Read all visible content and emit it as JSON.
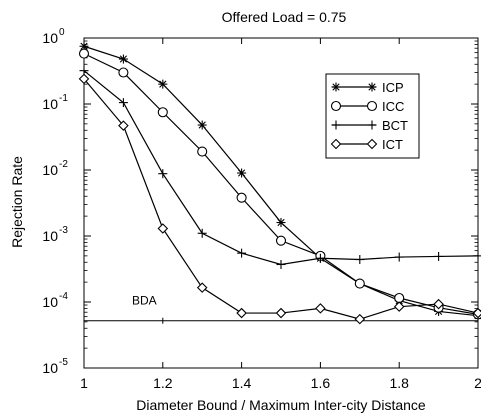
{
  "chart_data": {
    "type": "line",
    "title": "Offered Load = 0.75",
    "xlabel": "Diameter Bound / Maximum Inter-city Distance",
    "ylabel": "Rejection Rate",
    "xscale": "linear",
    "yscale": "log",
    "xlim": [
      1,
      2
    ],
    "ylim": [
      1e-05,
      1
    ],
    "xticks": [
      1,
      1.2,
      1.4,
      1.6,
      1.8,
      2
    ],
    "xtick_labels": [
      "1",
      "1.2",
      "1.4",
      "1.6",
      "1.8",
      "2"
    ],
    "yticks": [
      1e-05,
      0.0001,
      0.001,
      0.01,
      0.1,
      1
    ],
    "ytick_labels": [
      {
        "base": "10",
        "exp": "-5"
      },
      {
        "base": "10",
        "exp": "-4"
      },
      {
        "base": "10",
        "exp": "-3"
      },
      {
        "base": "10",
        "exp": "-2"
      },
      {
        "base": "10",
        "exp": "-1"
      },
      {
        "base": "10",
        "exp": "0"
      }
    ],
    "grid": false,
    "legend_position": "top-right",
    "x": [
      1.0,
      1.1,
      1.2,
      1.3,
      1.4,
      1.5,
      1.6,
      1.7,
      1.8,
      1.9,
      2.0
    ],
    "series": [
      {
        "name": "ICP",
        "marker": "asterisk",
        "values": [
          0.75,
          0.48,
          0.2,
          0.048,
          0.009,
          0.0016,
          0.00046,
          0.00019,
          0.000105,
          7.2e-05,
          6.2e-05
        ]
      },
      {
        "name": "ICC",
        "marker": "circle",
        "values": [
          0.58,
          0.3,
          0.075,
          0.019,
          0.0038,
          0.00085,
          0.0005,
          0.00019,
          0.000115,
          8.2e-05,
          6.5e-05
        ]
      },
      {
        "name": "BCT",
        "marker": "plus",
        "values": [
          0.32,
          0.105,
          0.0088,
          0.0011,
          0.00055,
          0.00037,
          0.00046,
          0.00044,
          0.00048,
          0.00049,
          0.0005
        ]
      },
      {
        "name": "ICT",
        "marker": "diamond",
        "values": [
          0.24,
          0.047,
          0.0013,
          0.000165,
          6.8e-05,
          6.8e-05,
          8e-05,
          5.5e-05,
          8.5e-05,
          9.3e-05,
          6.8e-05
        ]
      }
    ],
    "reference_line": {
      "label": "BDA",
      "value": 5.2e-05,
      "marker_x": 1.2
    }
  }
}
